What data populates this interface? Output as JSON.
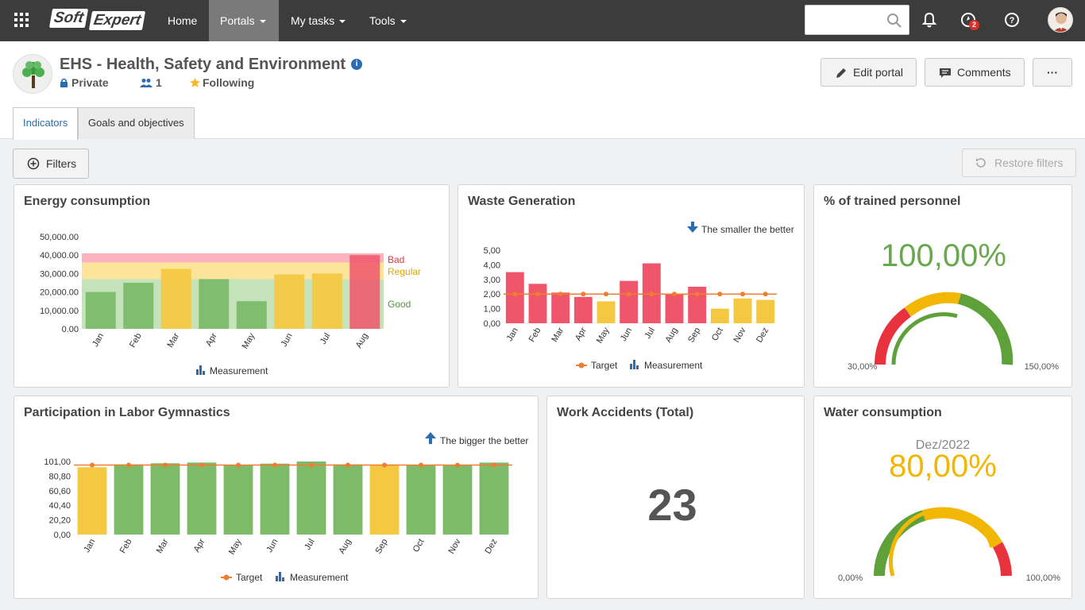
{
  "topbar": {
    "logo_soft": "Soft",
    "logo_expert": "Expert",
    "nav": [
      {
        "label": "Home",
        "dropdown": false
      },
      {
        "label": "Portals",
        "dropdown": true,
        "active": true
      },
      {
        "label": "My tasks",
        "dropdown": true
      },
      {
        "label": "Tools",
        "dropdown": true
      }
    ],
    "search_placeholder": "",
    "notification_badge": "2"
  },
  "header": {
    "title": "EHS - Health, Safety and Environment",
    "privacy": "Private",
    "members": "1",
    "following": "Following",
    "edit_label": "Edit portal",
    "comments_label": "Comments",
    "more_label": "···",
    "tabs": [
      {
        "label": "Indicators",
        "active": true
      },
      {
        "label": "Goals and objectives",
        "active": false
      }
    ]
  },
  "toolbar": {
    "filters_label": "Filters",
    "restore_label": "Restore filters"
  },
  "colors": {
    "green": "#7dbb69",
    "yellow": "#f5c842",
    "red": "#f0566b",
    "target": "#ef7d32",
    "blue": "#2c6cb0"
  },
  "cards": {
    "energy": {
      "title": "Energy consumption",
      "legend": "Measurement",
      "band_labels": {
        "bad": "Bad",
        "regular": "Regular",
        "good": "Good"
      }
    },
    "waste": {
      "title": "Waste Generation",
      "hint": "The smaller the better",
      "legend_target": "Target",
      "legend_measure": "Measurement"
    },
    "trained": {
      "title": "% of trained personnel",
      "value": "100,00%",
      "min": "30,00%",
      "max": "150,00%"
    },
    "gym": {
      "title": "Participation in Labor Gymnastics",
      "hint": "The bigger the better",
      "legend_target": "Target",
      "legend_measure": "Measurement"
    },
    "accidents": {
      "title": "Work Accidents (Total)",
      "value": "23"
    },
    "water": {
      "title": "Water consumption",
      "period": "Dez/2022",
      "value": "80,00%",
      "min": "0,00%",
      "max": "100,00%"
    }
  },
  "chart_data": [
    {
      "type": "bar",
      "title": "Energy consumption",
      "categories": [
        "Jan",
        "Feb",
        "Mar",
        "Apr",
        "May",
        "Jun",
        "Jul",
        "Aug"
      ],
      "series": [
        {
          "name": "Measurement",
          "values": [
            20000,
            25000,
            32500,
            27000,
            15000,
            29500,
            30000,
            40000
          ]
        }
      ],
      "bar_status": [
        "good",
        "good",
        "regular",
        "good",
        "good",
        "regular",
        "regular",
        "bad"
      ],
      "bands": [
        {
          "name": "Good",
          "from": 0,
          "to": 27000
        },
        {
          "name": "Regular",
          "from": 27000,
          "to": 36000
        },
        {
          "name": "Bad",
          "from": 36000,
          "to": 41000
        }
      ],
      "yticks": [
        "0.00",
        "10,000.00",
        "20,000.00",
        "30,000.00",
        "40,000.00",
        "50,000.00"
      ],
      "ylim": [
        0,
        50000
      ]
    },
    {
      "type": "bar",
      "title": "Waste Generation",
      "categories": [
        "Jan",
        "Feb",
        "Mar",
        "Apr",
        "May",
        "Jun",
        "Jul",
        "Aug",
        "Sep",
        "Oct",
        "Nov",
        "Dez"
      ],
      "series": [
        {
          "name": "Measurement",
          "values": [
            3.5,
            2.7,
            2.1,
            1.8,
            1.5,
            2.9,
            4.1,
            2.0,
            2.5,
            1.0,
            1.7,
            1.6
          ]
        },
        {
          "name": "Target",
          "values": [
            2.0,
            2.0,
            2.0,
            2.0,
            2.0,
            2.0,
            2.0,
            2.0,
            2.0,
            2.0,
            2.0,
            2.0
          ]
        }
      ],
      "bar_status": [
        "bad",
        "bad",
        "bad",
        "bad",
        "ok",
        "bad",
        "bad",
        "bad",
        "bad",
        "ok",
        "ok",
        "ok"
      ],
      "yticks": [
        "0,00",
        "1,00",
        "2,00",
        "3,00",
        "4,00",
        "5,00"
      ],
      "ylim": [
        0,
        5
      ]
    },
    {
      "type": "bar",
      "title": "Participation in Labor Gymnastics",
      "categories": [
        "Jan",
        "Feb",
        "Mar",
        "Apr",
        "May",
        "Jun",
        "Jul",
        "Aug",
        "Sep",
        "Oct",
        "Nov",
        "Dez"
      ],
      "series": [
        {
          "name": "Measurement",
          "values": [
            93,
            97,
            98.5,
            99.5,
            96.5,
            98,
            101,
            97,
            95.5,
            96,
            96,
            99.5
          ]
        },
        {
          "name": "Target",
          "values": [
            96,
            96,
            96,
            96,
            96,
            96,
            96,
            96,
            96,
            96,
            96,
            96
          ]
        }
      ],
      "bar_status": [
        "ok",
        "good",
        "good",
        "good",
        "good",
        "good",
        "good",
        "good",
        "ok",
        "good",
        "good",
        "good"
      ],
      "yticks": [
        "0,00",
        "20,20",
        "40,40",
        "60,60",
        "80,80",
        "101,00"
      ],
      "ylim": [
        0,
        101
      ]
    }
  ]
}
